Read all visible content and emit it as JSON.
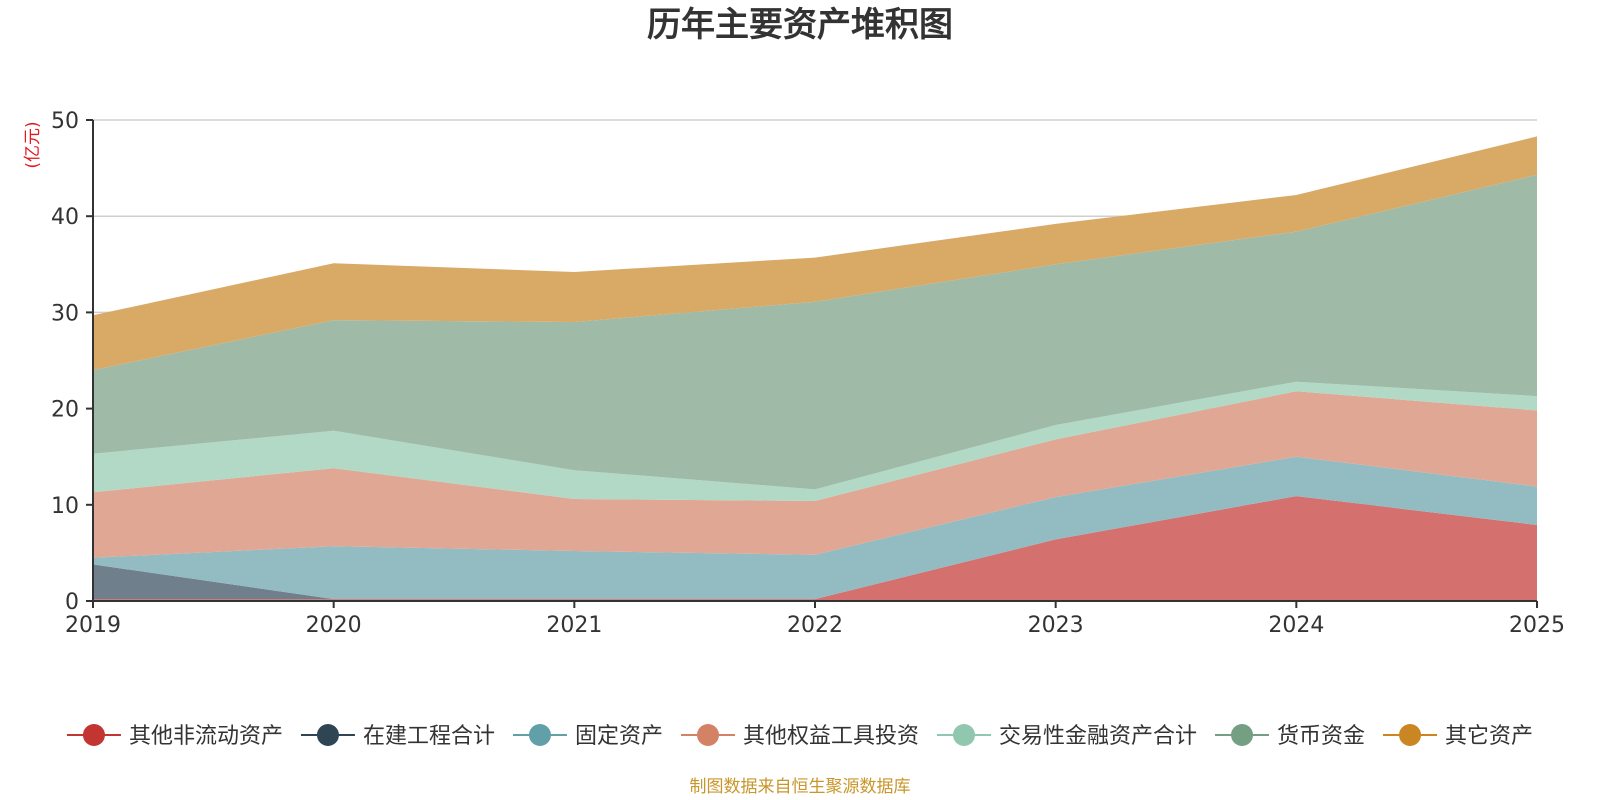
{
  "chart_data": {
    "type": "area",
    "stacked": true,
    "title": "历年主要资产堆积图",
    "unit": "(亿元)",
    "source": "制图数据来自恒生聚源数据库",
    "categories": [
      "2019",
      "2020",
      "2021",
      "2022",
      "2023",
      "2024",
      "2025"
    ],
    "ylim": [
      0,
      50
    ],
    "yticks": [
      0,
      10,
      20,
      30,
      40,
      50
    ],
    "grid": true,
    "legend_position": "bottom",
    "series": [
      {
        "name": "其他非流动资产",
        "color": "#c23531",
        "fill": "#d4706d",
        "values": [
          0.2,
          0.2,
          0.2,
          0.2,
          6.4,
          10.9,
          7.9
        ]
      },
      {
        "name": "在建工程合计",
        "color": "#2f4554",
        "fill": "#6f7f8b",
        "values": [
          3.6,
          0,
          0,
          0,
          0,
          0,
          0
        ]
      },
      {
        "name": "固定资产",
        "color": "#61a0a8",
        "fill": "#92bcc2",
        "values": [
          0.7,
          5.5,
          5.0,
          4.6,
          4.4,
          4.1,
          4.0
        ]
      },
      {
        "name": "其他权益工具投资",
        "color": "#d48265",
        "fill": "#e0a794",
        "values": [
          6.8,
          8.1,
          5.4,
          5.6,
          6.0,
          6.8,
          7.9
        ]
      },
      {
        "name": "交易性金融资产合计",
        "color": "#91c7ae",
        "fill": "#b1d9c6",
        "values": [
          4.0,
          3.9,
          3.0,
          1.2,
          1.5,
          1.0,
          1.5
        ]
      },
      {
        "name": "货币资金",
        "color": "#749f83",
        "fill": "#9fbba8",
        "values": [
          8.7,
          11.5,
          15.4,
          19.5,
          16.7,
          15.6,
          23.0
        ]
      },
      {
        "name": "其它资产",
        "color": "#ca8622",
        "fill": "#d9a966",
        "values": [
          5.7,
          5.9,
          5.2,
          4.6,
          4.2,
          3.8,
          4.0
        ]
      }
    ]
  }
}
